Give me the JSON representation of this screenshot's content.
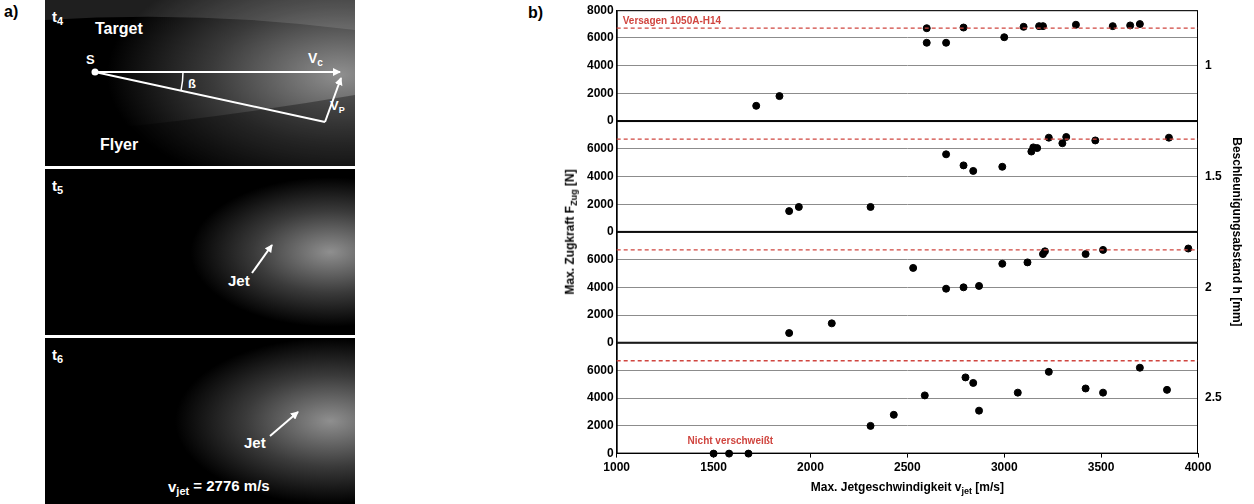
{
  "panel_a": {
    "label": "a)",
    "frames": [
      {
        "time": [
          "t",
          {
            "sub": "4"
          }
        ],
        "target": "Target",
        "flyer": "Flyer",
        "origin": "S",
        "collision_velocity": [
          "V",
          {
            "sub": "c"
          }
        ],
        "plate_velocity": [
          "V",
          {
            "sub": "P"
          }
        ],
        "angle": "ß"
      },
      {
        "time": [
          "t",
          {
            "sub": "5"
          }
        ],
        "jet": "Jet"
      },
      {
        "time": [
          "t",
          {
            "sub": "6"
          }
        ],
        "jet": "Jet",
        "jet_velocity": [
          "v",
          {
            "sub": "jet"
          },
          " = 2776 m/s"
        ]
      }
    ]
  },
  "figure_b": {
    "label": "b)",
    "x_label": [
      "Max. Jetgeschwindigkeit v",
      {
        "sub": "jet"
      },
      " [m/s]"
    ],
    "y_label": [
      "Max. Zugkraft F",
      {
        "sub": "Zug"
      },
      " [N]"
    ],
    "right_label": "Beschleunigungsabstand h [mm]",
    "xlim": [
      1000,
      4000
    ],
    "xticks": [
      1000,
      1500,
      2000,
      2500,
      3000,
      3500,
      4000
    ]
  },
  "chart_data": [
    {
      "type": "scatter",
      "title": "1",
      "color": "#000000",
      "marker": "circle",
      "grid": true,
      "ylim": [
        0,
        8000
      ],
      "yticks": [
        0,
        2000,
        4000,
        6000,
        8000
      ],
      "reference_line": {
        "value": 6700,
        "label": "Versagen 1050A-H14",
        "color": "#d0453f",
        "line_style": "dashed"
      },
      "x": [
        1720,
        1840,
        2600,
        2600,
        2700,
        2790,
        3000,
        3100,
        3180,
        3200,
        3370,
        3560,
        3650,
        3700
      ],
      "values": [
        1100,
        1800,
        6700,
        5650,
        5650,
        6750,
        6050,
        6800,
        6850,
        6850,
        6950,
        6850,
        6900,
        7000
      ]
    },
    {
      "type": "scatter",
      "title": "1.5",
      "color": "#000000",
      "marker": "circle",
      "grid": true,
      "ylim": [
        0,
        8000
      ],
      "yticks": [
        0,
        2000,
        4000,
        6000
      ],
      "reference_line": {
        "value": 6700,
        "color": "#d0453f",
        "line_style": "dashed"
      },
      "x": [
        1890,
        1940,
        2310,
        2700,
        2790,
        2840,
        2990,
        3140,
        3150,
        3170,
        3230,
        3300,
        3320,
        3470,
        3850
      ],
      "values": [
        1500,
        1800,
        1800,
        5600,
        4800,
        4400,
        4700,
        5800,
        6100,
        6050,
        6800,
        6400,
        6850,
        6600,
        6800
      ]
    },
    {
      "type": "scatter",
      "title": "2",
      "color": "#000000",
      "marker": "circle",
      "grid": true,
      "ylim": [
        0,
        8000
      ],
      "yticks": [
        0,
        2000,
        4000,
        6000
      ],
      "reference_line": {
        "value": 6700,
        "color": "#d0453f",
        "line_style": "dashed"
      },
      "x": [
        1890,
        2110,
        2530,
        2700,
        2790,
        2870,
        2990,
        3120,
        3200,
        3210,
        3420,
        3510,
        3950
      ],
      "values": [
        700,
        1400,
        5400,
        3900,
        4000,
        4100,
        5700,
        5800,
        6400,
        6600,
        6400,
        6700,
        6800
      ]
    },
    {
      "type": "scatter",
      "title": "2.5",
      "color": "#000000",
      "marker": "circle",
      "grid": true,
      "ylim": [
        0,
        8000
      ],
      "yticks": [
        0,
        2000,
        4000,
        6000
      ],
      "reference_line": {
        "value": 6700,
        "color": "#d0453f",
        "line_style": "dashed"
      },
      "annotation": {
        "text": "Nicht verschweißt",
        "color": "#d0453f"
      },
      "x": [
        1500,
        1580,
        1680,
        2310,
        2430,
        2590,
        2800,
        2840,
        2870,
        3070,
        3230,
        3420,
        3510,
        3700,
        3840
      ],
      "values": [
        0,
        0,
        0,
        2000,
        2800,
        4200,
        5500,
        5100,
        3100,
        4400,
        5900,
        4700,
        4400,
        6200,
        4600
      ]
    }
  ]
}
